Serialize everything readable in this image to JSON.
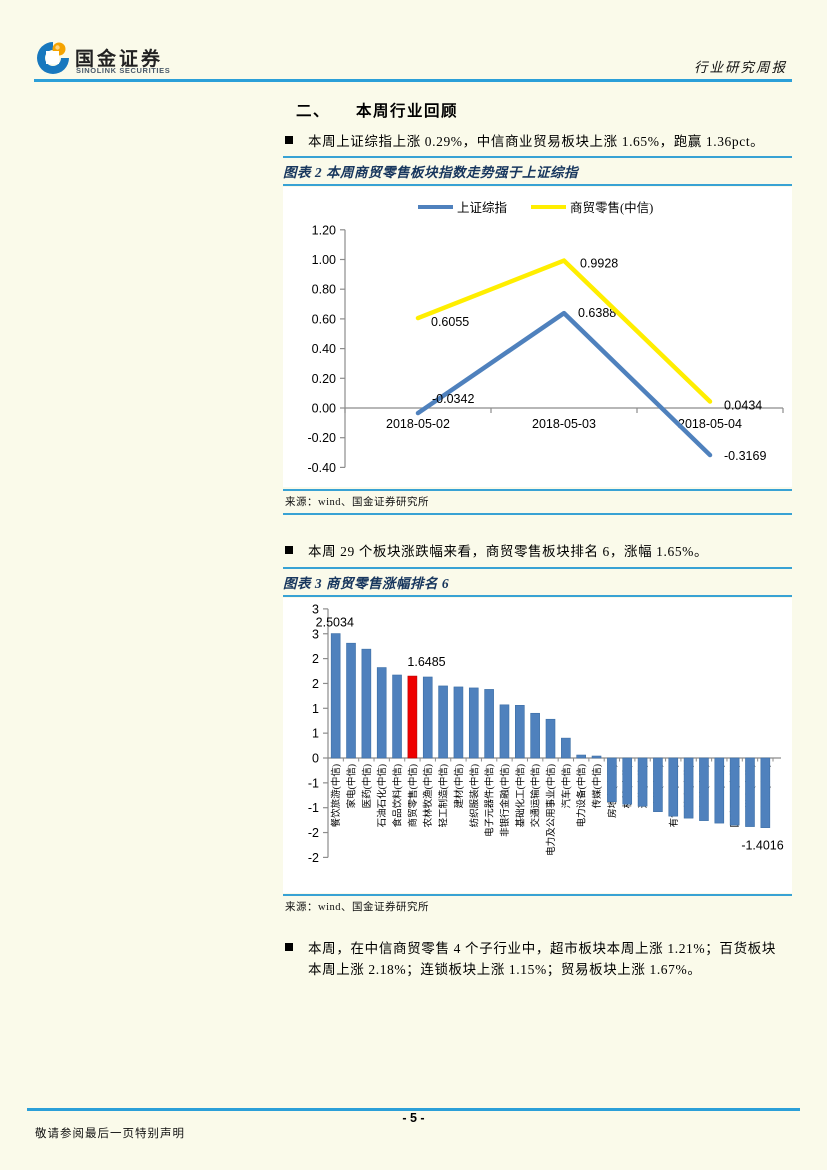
{
  "header": {
    "logo_cn": "国金证券",
    "logo_en": "SINOLINK SECURITIES",
    "doc_type": "行业研究周报"
  },
  "section": {
    "index": "二、",
    "title": "本周行业回顾"
  },
  "bullets": [
    "本周上证综指上涨 0.29%，中信商业贸易板块上涨 1.65%，跑赢 1.36pct。",
    "本周 29 个板块涨跌幅来看，商贸零售板块排名 6，涨幅 1.65%。",
    "本周，在中信商贸零售 4 个子行业中，超市板块本周上涨 1.21%；百货板块本周上涨 2.18%；连锁板块上涨 1.15%；贸易板块上涨 1.67%。"
  ],
  "figures": [
    {
      "caption": "图表 2 本周商贸零售板块指数走势强于上证综指",
      "source": "来源：wind、国金证券研究所"
    },
    {
      "caption": "图表 3 商贸零售涨幅排名 6",
      "source": "来源：wind、国金证券研究所"
    }
  ],
  "footer": {
    "page_number": "- 5 -",
    "note": "敬请参阅最后一页特别声明"
  },
  "colors": {
    "rule_blue": "#2b9fd8",
    "caption_navy": "#17365d",
    "line_blue": "#4f81bd",
    "line_yellow": "#ffee00",
    "bar_blue": "#4f81bd",
    "bar_red": "#ee0000",
    "axis_gray": "#8c8c8c"
  },
  "chart_data": [
    {
      "type": "line",
      "x": [
        "2018-05-02",
        "2018-05-03",
        "2018-05-04"
      ],
      "series": [
        {
          "name": "上证综指",
          "color": "#4f81bd",
          "values": [
            -0.0342,
            0.6388,
            -0.3169
          ],
          "point_labels": [
            "-0.0342",
            "0.6388",
            "-0.3169"
          ]
        },
        {
          "name": "商贸零售(中信)",
          "color": "#ffee00",
          "values": [
            0.6055,
            0.9928,
            0.0434
          ],
          "point_labels": [
            "0.6055",
            "0.9928",
            "0.0434"
          ]
        }
      ],
      "ylim": [
        -0.4,
        1.2
      ],
      "ytick_step": 0.2,
      "ytick_labels": [
        "1.20",
        "1.00",
        "0.80",
        "0.60",
        "0.40",
        "0.20",
        "0.00",
        "-0.20",
        "-0.40"
      ],
      "legend_position": "top",
      "grid": false
    },
    {
      "type": "bar",
      "categories": [
        "餐饮旅游(中信)",
        "家电(中信)",
        "医药(中信)",
        "石油石化(中信)",
        "食品饮料(中信)",
        "商贸零售(中信)",
        "农林牧渔(中信)",
        "轻工制造(中信)",
        "建材(中信)",
        "纺织服装(中信)",
        "电子元器件(中信)",
        "非银行金融(中信)",
        "基础化工(中信)",
        "交通运输(中信)",
        "电力及公用事业(中信)",
        "汽车(中信)",
        "电力设备(中信)",
        "传媒(中信)",
        "房地产(中信)",
        "机械(中信)",
        "通信(中信)",
        "建筑(中信)",
        "有色金属(中信)",
        "综合(中信)",
        "钢铁(中信)",
        "计算机(中信)",
        "国防军工(中信)",
        "煤炭(中信)",
        "银行(中信)"
      ],
      "values": [
        2.5034,
        2.31,
        2.19,
        1.82,
        1.67,
        1.6485,
        1.63,
        1.45,
        1.43,
        1.41,
        1.38,
        1.07,
        1.06,
        0.9,
        0.78,
        0.4,
        0.06,
        0.04,
        -0.88,
        -0.93,
        -0.97,
        -1.08,
        -1.17,
        -1.21,
        -1.26,
        -1.31,
        -1.35,
        -1.38,
        -1.4016
      ],
      "highlight_index": 5,
      "point_labels": {
        "0": "2.5034",
        "5": "1.6485",
        "28": "-1.4016"
      },
      "ylim": [
        -2,
        3
      ],
      "ytick_step": 0.5,
      "ytick_labels": [
        "3",
        "3",
        "2",
        "2",
        "1",
        "1",
        "0",
        "-1",
        "-1",
        "-2",
        "-2"
      ],
      "grid": false
    }
  ]
}
